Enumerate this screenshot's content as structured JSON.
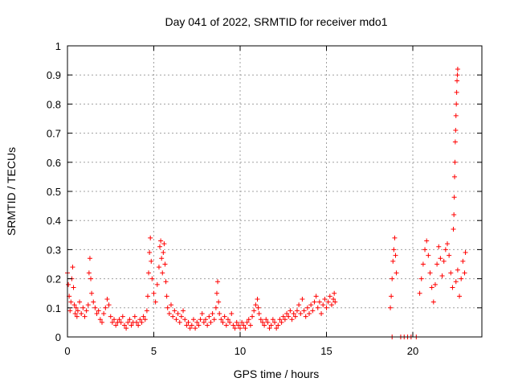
{
  "chart_data": {
    "type": "scatter",
    "title": "Day 041 of 2022, SRMTID for receiver mdo1",
    "xlabel": "GPS time / hours",
    "ylabel": "SRMTID / TECUs",
    "xlim": [
      0,
      24
    ],
    "ylim": [
      0,
      1
    ],
    "xticks": [
      0,
      5,
      10,
      15,
      20
    ],
    "yticks": [
      0,
      0.1,
      0.2,
      0.3,
      0.4,
      0.5,
      0.6,
      0.7,
      0.8,
      0.9,
      1
    ],
    "grid": true,
    "marker": "+",
    "series": [
      {
        "name": "SRMTID",
        "color": "#ff0000",
        "points": [
          [
            0.0,
            0.22
          ],
          [
            0.05,
            0.18
          ],
          [
            0.1,
            0.14
          ],
          [
            0.15,
            0.09
          ],
          [
            0.2,
            0.12
          ],
          [
            0.25,
            0.2
          ],
          [
            0.3,
            0.24
          ],
          [
            0.35,
            0.17
          ],
          [
            0.4,
            0.11
          ],
          [
            0.45,
            0.08
          ],
          [
            0.5,
            0.1
          ],
          [
            0.55,
            0.07
          ],
          [
            0.6,
            0.09
          ],
          [
            0.7,
            0.12
          ],
          [
            0.8,
            0.08
          ],
          [
            0.9,
            0.1
          ],
          [
            1.0,
            0.07
          ],
          [
            1.1,
            0.09
          ],
          [
            1.2,
            0.11
          ],
          [
            1.25,
            0.22
          ],
          [
            1.3,
            0.27
          ],
          [
            1.35,
            0.2
          ],
          [
            1.4,
            0.15
          ],
          [
            1.5,
            0.12
          ],
          [
            1.6,
            0.1
          ],
          [
            1.7,
            0.08
          ],
          [
            1.8,
            0.09
          ],
          [
            1.9,
            0.06
          ],
          [
            2.0,
            0.05
          ],
          [
            2.1,
            0.08
          ],
          [
            2.2,
            0.1
          ],
          [
            2.3,
            0.13
          ],
          [
            2.4,
            0.11
          ],
          [
            2.5,
            0.07
          ],
          [
            2.6,
            0.05
          ],
          [
            2.7,
            0.06
          ],
          [
            2.8,
            0.04
          ],
          [
            2.9,
            0.05
          ],
          [
            3.0,
            0.06
          ],
          [
            3.1,
            0.05
          ],
          [
            3.2,
            0.07
          ],
          [
            3.3,
            0.04
          ],
          [
            3.4,
            0.03
          ],
          [
            3.5,
            0.05
          ],
          [
            3.6,
            0.06
          ],
          [
            3.7,
            0.04
          ],
          [
            3.8,
            0.05
          ],
          [
            3.9,
            0.07
          ],
          [
            4.0,
            0.05
          ],
          [
            4.1,
            0.04
          ],
          [
            4.2,
            0.06
          ],
          [
            4.3,
            0.05
          ],
          [
            4.4,
            0.07
          ],
          [
            4.5,
            0.06
          ],
          [
            4.6,
            0.09
          ],
          [
            4.65,
            0.14
          ],
          [
            4.7,
            0.22
          ],
          [
            4.75,
            0.29
          ],
          [
            4.8,
            0.34
          ],
          [
            4.85,
            0.26
          ],
          [
            4.9,
            0.2
          ],
          [
            5.0,
            0.15
          ],
          [
            5.1,
            0.12
          ],
          [
            5.2,
            0.18
          ],
          [
            5.3,
            0.24
          ],
          [
            5.35,
            0.31
          ],
          [
            5.4,
            0.33
          ],
          [
            5.45,
            0.27
          ],
          [
            5.5,
            0.22
          ],
          [
            5.55,
            0.29
          ],
          [
            5.6,
            0.32
          ],
          [
            5.65,
            0.25
          ],
          [
            5.7,
            0.19
          ],
          [
            5.75,
            0.14
          ],
          [
            5.8,
            0.1
          ],
          [
            5.9,
            0.08
          ],
          [
            6.0,
            0.11
          ],
          [
            6.1,
            0.07
          ],
          [
            6.2,
            0.09
          ],
          [
            6.3,
            0.06
          ],
          [
            6.4,
            0.08
          ],
          [
            6.5,
            0.05
          ],
          [
            6.6,
            0.07
          ],
          [
            6.7,
            0.09
          ],
          [
            6.8,
            0.06
          ],
          [
            6.9,
            0.04
          ],
          [
            7.0,
            0.05
          ],
          [
            7.1,
            0.03
          ],
          [
            7.2,
            0.04
          ],
          [
            7.3,
            0.06
          ],
          [
            7.4,
            0.03
          ],
          [
            7.5,
            0.05
          ],
          [
            7.6,
            0.04
          ],
          [
            7.7,
            0.06
          ],
          [
            7.8,
            0.08
          ],
          [
            7.9,
            0.05
          ],
          [
            8.0,
            0.06
          ],
          [
            8.1,
            0.04
          ],
          [
            8.2,
            0.07
          ],
          [
            8.3,
            0.05
          ],
          [
            8.4,
            0.08
          ],
          [
            8.5,
            0.06
          ],
          [
            8.6,
            0.1
          ],
          [
            8.65,
            0.15
          ],
          [
            8.7,
            0.19
          ],
          [
            8.75,
            0.12
          ],
          [
            8.8,
            0.08
          ],
          [
            8.9,
            0.06
          ],
          [
            9.0,
            0.05
          ],
          [
            9.1,
            0.07
          ],
          [
            9.2,
            0.04
          ],
          [
            9.3,
            0.06
          ],
          [
            9.4,
            0.05
          ],
          [
            9.5,
            0.08
          ],
          [
            9.6,
            0.04
          ],
          [
            9.7,
            0.03
          ],
          [
            9.8,
            0.05
          ],
          [
            9.9,
            0.04
          ],
          [
            10.0,
            0.03
          ],
          [
            10.1,
            0.05
          ],
          [
            10.2,
            0.04
          ],
          [
            10.3,
            0.03
          ],
          [
            10.4,
            0.05
          ],
          [
            10.5,
            0.06
          ],
          [
            10.6,
            0.04
          ],
          [
            10.7,
            0.07
          ],
          [
            10.8,
            0.09
          ],
          [
            10.9,
            0.11
          ],
          [
            11.0,
            0.13
          ],
          [
            11.05,
            0.1
          ],
          [
            11.1,
            0.08
          ],
          [
            11.2,
            0.06
          ],
          [
            11.3,
            0.05
          ],
          [
            11.4,
            0.04
          ],
          [
            11.5,
            0.06
          ],
          [
            11.6,
            0.05
          ],
          [
            11.7,
            0.03
          ],
          [
            11.8,
            0.04
          ],
          [
            11.9,
            0.06
          ],
          [
            12.0,
            0.05
          ],
          [
            12.1,
            0.03
          ],
          [
            12.2,
            0.04
          ],
          [
            12.3,
            0.06
          ],
          [
            12.4,
            0.05
          ],
          [
            12.5,
            0.07
          ],
          [
            12.6,
            0.06
          ],
          [
            12.7,
            0.08
          ],
          [
            12.8,
            0.07
          ],
          [
            12.9,
            0.09
          ],
          [
            13.0,
            0.06
          ],
          [
            13.1,
            0.08
          ],
          [
            13.2,
            0.07
          ],
          [
            13.3,
            0.09
          ],
          [
            13.4,
            0.11
          ],
          [
            13.5,
            0.08
          ],
          [
            13.6,
            0.13
          ],
          [
            13.7,
            0.09
          ],
          [
            13.8,
            0.07
          ],
          [
            13.9,
            0.1
          ],
          [
            14.0,
            0.08
          ],
          [
            14.1,
            0.11
          ],
          [
            14.2,
            0.09
          ],
          [
            14.3,
            0.12
          ],
          [
            14.4,
            0.14
          ],
          [
            14.5,
            0.1
          ],
          [
            14.6,
            0.12
          ],
          [
            14.7,
            0.08
          ],
          [
            14.8,
            0.11
          ],
          [
            14.9,
            0.13
          ],
          [
            15.0,
            0.1
          ],
          [
            15.1,
            0.12
          ],
          [
            15.2,
            0.14
          ],
          [
            15.3,
            0.11
          ],
          [
            15.4,
            0.13
          ],
          [
            15.45,
            0.15
          ],
          [
            15.5,
            0.12
          ],
          [
            18.7,
            0.1
          ],
          [
            18.75,
            0.14
          ],
          [
            18.8,
            0.2
          ],
          [
            18.85,
            0.26
          ],
          [
            18.9,
            0.3
          ],
          [
            18.95,
            0.34
          ],
          [
            19.0,
            0.28
          ],
          [
            19.05,
            0.22
          ],
          [
            18.8,
            0.0
          ],
          [
            19.3,
            0.0
          ],
          [
            19.5,
            0.0
          ],
          [
            19.7,
            0.0
          ],
          [
            19.9,
            0.0
          ],
          [
            20.2,
            0.0
          ],
          [
            20.4,
            0.15
          ],
          [
            20.5,
            0.2
          ],
          [
            20.6,
            0.25
          ],
          [
            20.7,
            0.3
          ],
          [
            20.8,
            0.33
          ],
          [
            20.9,
            0.28
          ],
          [
            21.0,
            0.22
          ],
          [
            21.1,
            0.17
          ],
          [
            21.2,
            0.12
          ],
          [
            21.3,
            0.18
          ],
          [
            21.4,
            0.25
          ],
          [
            21.5,
            0.31
          ],
          [
            21.6,
            0.27
          ],
          [
            21.7,
            0.21
          ],
          [
            21.8,
            0.26
          ],
          [
            21.9,
            0.3
          ],
          [
            22.0,
            0.32
          ],
          [
            22.1,
            0.28
          ],
          [
            22.2,
            0.22
          ],
          [
            22.3,
            0.17
          ],
          [
            22.35,
            0.37
          ],
          [
            22.38,
            0.42
          ],
          [
            22.4,
            0.48
          ],
          [
            22.42,
            0.55
          ],
          [
            22.44,
            0.6
          ],
          [
            22.46,
            0.67
          ],
          [
            22.48,
            0.71
          ],
          [
            22.5,
            0.76
          ],
          [
            22.52,
            0.8
          ],
          [
            22.54,
            0.84
          ],
          [
            22.56,
            0.88
          ],
          [
            22.58,
            0.9
          ],
          [
            22.6,
            0.92
          ],
          [
            22.5,
            0.19
          ],
          [
            22.6,
            0.23
          ],
          [
            22.7,
            0.14
          ],
          [
            22.8,
            0.2
          ],
          [
            22.9,
            0.26
          ],
          [
            23.0,
            0.22
          ],
          [
            23.05,
            0.29
          ]
        ]
      }
    ]
  }
}
